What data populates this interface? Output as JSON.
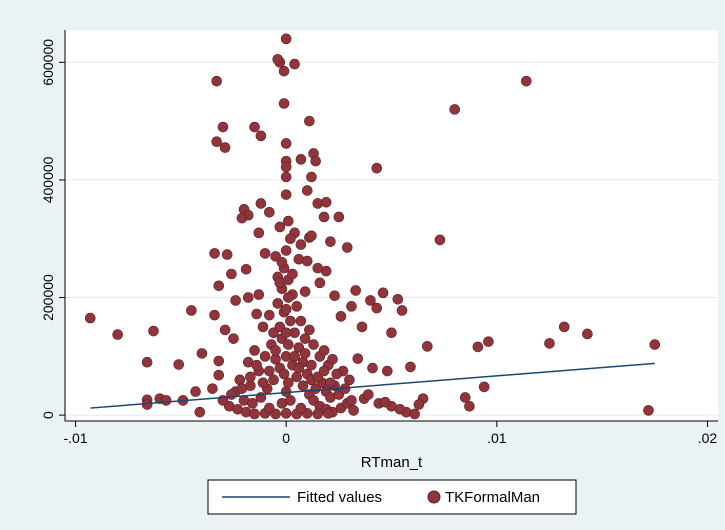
{
  "chart_data": {
    "type": "scatter",
    "title": "",
    "xlabel": "RTman_t",
    "ylabel": "",
    "xlim": [
      -0.0105,
      0.0205
    ],
    "ylim": [
      -10000,
      655000
    ],
    "x_ticks": [
      {
        "value": -0.01,
        "label": "-.01"
      },
      {
        "value": 0,
        "label": "0"
      },
      {
        "value": 0.01,
        "label": ".01"
      },
      {
        "value": 0.02,
        "label": ".02"
      }
    ],
    "y_ticks": [
      {
        "value": 0,
        "label": "0"
      },
      {
        "value": 200000,
        "label": "200000"
      },
      {
        "value": 400000,
        "label": "400000"
      },
      {
        "value": 600000,
        "label": "600000"
      }
    ],
    "grid": {
      "horizontal": true,
      "vertical": false
    },
    "legend": {
      "position": "bottom",
      "entries": [
        "Fitted values",
        "TKFormalMan"
      ]
    },
    "colors": {
      "background": "#eaf2f3",
      "plot_background": "#ffffff",
      "grid": "#e5ecee",
      "fit_line": "#1a476f",
      "points": "#90353b",
      "point_edge": "#5e1f24"
    },
    "series": [
      {
        "name": "Fitted values",
        "type": "line",
        "points": [
          [
            -0.0093,
            12000
          ],
          [
            0.0175,
            88000
          ]
        ]
      },
      {
        "name": "TKFormalMan",
        "type": "scatter",
        "points": [
          [
            0.0,
            640000
          ],
          [
            -0.0003,
            600000
          ],
          [
            -0.0004,
            605000
          ],
          [
            0.0004,
            597000
          ],
          [
            -0.0001,
            585000
          ],
          [
            -0.0033,
            568000
          ],
          [
            0.0114,
            568000
          ],
          [
            0.008,
            520000
          ],
          [
            -0.0001,
            530000
          ],
          [
            0.0011,
            500000
          ],
          [
            -0.003,
            490000
          ],
          [
            -0.0015,
            490000
          ],
          [
            -0.0033,
            465000
          ],
          [
            -0.0029,
            455000
          ],
          [
            -0.0012,
            475000
          ],
          [
            0.0,
            462000
          ],
          [
            0.0007,
            435000
          ],
          [
            0.0013,
            445000
          ],
          [
            0.0014,
            432000
          ],
          [
            0.0,
            432000
          ],
          [
            0.0,
            422000
          ],
          [
            0.0043,
            420000
          ],
          [
            0.0,
            405000
          ],
          [
            0.0012,
            405000
          ],
          [
            0.001,
            382000
          ],
          [
            0.0,
            375000
          ],
          [
            -0.0012,
            360000
          ],
          [
            -0.002,
            350000
          ],
          [
            0.0015,
            360000
          ],
          [
            0.0019,
            362000
          ],
          [
            -0.0018,
            340000
          ],
          [
            -0.0021,
            335000
          ],
          [
            -0.0008,
            345000
          ],
          [
            0.0018,
            337000
          ],
          [
            0.0025,
            337000
          ],
          [
            -0.0013,
            310000
          ],
          [
            -0.0003,
            320000
          ],
          [
            0.0004,
            310000
          ],
          [
            0.0011,
            302000
          ],
          [
            0.0012,
            305000
          ],
          [
            0.0073,
            298000
          ],
          [
            0.0029,
            285000
          ],
          [
            0.0021,
            295000
          ],
          [
            0.0007,
            290000
          ],
          [
            -0.0034,
            275000
          ],
          [
            -0.0028,
            273000
          ],
          [
            -0.001,
            275000
          ],
          [
            -0.0005,
            270000
          ],
          [
            0.0006,
            265000
          ],
          [
            0.001,
            262000
          ],
          [
            -0.0026,
            240000
          ],
          [
            -0.0019,
            248000
          ],
          [
            0.0019,
            245000
          ],
          [
            0.0015,
            250000
          ],
          [
            -0.0004,
            235000
          ],
          [
            -0.0032,
            220000
          ],
          [
            0.0016,
            225000
          ],
          [
            0.0033,
            212000
          ],
          [
            0.0046,
            208000
          ],
          [
            0.0053,
            197000
          ],
          [
            0.004,
            195000
          ],
          [
            -0.0018,
            200000
          ],
          [
            -0.0013,
            205000
          ],
          [
            0.0009,
            210000
          ],
          [
            0.0023,
            203000
          ],
          [
            0.0031,
            185000
          ],
          [
            -0.0045,
            178000
          ],
          [
            0.0043,
            182000
          ],
          [
            0.0055,
            178000
          ],
          [
            -0.0024,
            195000
          ],
          [
            -0.0093,
            165000
          ],
          [
            -0.0034,
            170000
          ],
          [
            -0.0014,
            172000
          ],
          [
            0.0026,
            168000
          ],
          [
            -0.008,
            137000
          ],
          [
            -0.0063,
            143000
          ],
          [
            0.0132,
            150000
          ],
          [
            0.0143,
            138000
          ],
          [
            0.0125,
            122000
          ],
          [
            0.0175,
            120000
          ],
          [
            0.0096,
            125000
          ],
          [
            0.0091,
            116000
          ],
          [
            0.0067,
            117000
          ],
          [
            0.005,
            140000
          ],
          [
            0.0036,
            150000
          ],
          [
            -0.0029,
            145000
          ],
          [
            -0.0025,
            130000
          ],
          [
            -0.004,
            105000
          ],
          [
            -0.0066,
            90000
          ],
          [
            -0.0051,
            86000
          ],
          [
            -0.0032,
            92000
          ],
          [
            0.0059,
            82000
          ],
          [
            0.0034,
            96000
          ],
          [
            0.0041,
            80000
          ],
          [
            0.0048,
            75000
          ],
          [
            0.0094,
            48000
          ],
          [
            -0.0049,
            25000
          ],
          [
            -0.0066,
            26000
          ],
          [
            -0.0066,
            18000
          ],
          [
            -0.006,
            28000
          ],
          [
            -0.0057,
            25000
          ],
          [
            -0.0043,
            40000
          ],
          [
            -0.0035,
            45000
          ],
          [
            -0.0032,
            68000
          ],
          [
            0.0085,
            30000
          ],
          [
            0.0087,
            15000
          ],
          [
            0.0065,
            28000
          ],
          [
            0.0063,
            18000
          ],
          [
            0.0057,
            5000
          ],
          [
            0.005,
            15000
          ],
          [
            0.0044,
            20000
          ],
          [
            0.0037,
            28000
          ],
          [
            0.003,
            60000
          ],
          [
            0.0027,
            75000
          ],
          [
            -0.0041,
            5000
          ],
          [
            0.0172,
            8000
          ],
          [
            0.0061,
            2000
          ],
          [
            0.0054,
            10000
          ],
          [
            0.0047,
            22000
          ],
          [
            0.0039,
            35000
          ],
          [
            -0.0022,
            60000
          ],
          [
            -0.0018,
            90000
          ],
          [
            -0.0015,
            110000
          ],
          [
            -0.0011,
            150000
          ],
          [
            -0.0008,
            170000
          ],
          [
            -0.0006,
            140000
          ],
          [
            -0.0004,
            190000
          ],
          [
            -0.0002,
            215000
          ],
          [
            0.0001,
            230000
          ],
          [
            0.0003,
            205000
          ],
          [
            0.0005,
            185000
          ],
          [
            0.0007,
            160000
          ],
          [
            0.0009,
            130000
          ],
          [
            0.0011,
            145000
          ],
          [
            0.0013,
            120000
          ],
          [
            0.0016,
            100000
          ],
          [
            0.0018,
            110000
          ],
          [
            0.002,
            85000
          ],
          [
            0.0022,
            95000
          ],
          [
            0.0024,
            70000
          ],
          [
            -0.0024,
            40000
          ],
          [
            -0.002,
            25000
          ],
          [
            -0.0017,
            50000
          ],
          [
            -0.0013,
            75000
          ],
          [
            -0.001,
            100000
          ],
          [
            -0.0007,
            120000
          ],
          [
            -0.0005,
            95000
          ],
          [
            -0.0003,
            150000
          ],
          [
            -0.0001,
            175000
          ],
          [
            0.0002,
            160000
          ],
          [
            0.0004,
            140000
          ],
          [
            0.0006,
            115000
          ],
          [
            0.0008,
            90000
          ],
          [
            0.001,
            70000
          ],
          [
            0.0012,
            60000
          ],
          [
            0.0014,
            45000
          ],
          [
            0.0017,
            55000
          ],
          [
            0.0019,
            40000
          ],
          [
            0.0021,
            30000
          ],
          [
            0.0023,
            50000
          ],
          [
            -0.0027,
            15000
          ],
          [
            -0.0023,
            10000
          ],
          [
            -0.0019,
            5000
          ],
          [
            -0.0016,
            20000
          ],
          [
            -0.0012,
            30000
          ],
          [
            -0.0009,
            45000
          ],
          [
            -0.0006,
            60000
          ],
          [
            -0.0003,
            80000
          ],
          [
            0.0,
            100000
          ],
          [
            0.0003,
            85000
          ],
          [
            0.0005,
            65000
          ],
          [
            0.0008,
            50000
          ],
          [
            0.0011,
            35000
          ],
          [
            0.0013,
            25000
          ],
          [
            0.0016,
            15000
          ],
          [
            0.0019,
            10000
          ],
          [
            0.0022,
            5000
          ],
          [
            0.0026,
            12000
          ],
          [
            0.0029,
            20000
          ],
          [
            0.0032,
            8000
          ],
          [
            -0.003,
            25000
          ],
          [
            -0.0026,
            35000
          ],
          [
            -0.0021,
            45000
          ],
          [
            -0.0017,
            65000
          ],
          [
            -0.0014,
            85000
          ],
          [
            -0.0011,
            55000
          ],
          [
            -0.0008,
            75000
          ],
          [
            -0.0005,
            110000
          ],
          [
            -0.0002,
            130000
          ],
          [
            0.0001,
            120000
          ],
          [
            0.0004,
            100000
          ],
          [
            0.0006,
            80000
          ],
          [
            0.0009,
            105000
          ],
          [
            0.0012,
            85000
          ],
          [
            0.0015,
            65000
          ],
          [
            0.0018,
            75000
          ],
          [
            0.0021,
            55000
          ],
          [
            0.0025,
            35000
          ],
          [
            0.0028,
            45000
          ],
          [
            0.0031,
            25000
          ],
          [
            -0.0015,
            2000
          ],
          [
            -0.001,
            3000
          ],
          [
            -0.0005,
            2000
          ],
          [
            0.0,
            3000
          ],
          [
            0.0005,
            2000
          ],
          [
            0.001,
            3000
          ],
          [
            0.0015,
            2000
          ],
          [
            0.002,
            3000
          ],
          [
            -0.0008,
            12000
          ],
          [
            0.0007,
            12000
          ],
          [
            -0.0002,
            20000
          ],
          [
            0.0002,
            25000
          ],
          [
            0.0,
            40000
          ],
          [
            0.0001,
            55000
          ],
          [
            -0.0001,
            70000
          ],
          [
            0.0,
            140000
          ],
          [
            0.0,
            180000
          ],
          [
            0.0001,
            200000
          ],
          [
            -0.0001,
            250000
          ],
          [
            0.0,
            280000
          ],
          [
            0.0002,
            300000
          ],
          [
            -0.0002,
            260000
          ],
          [
            0.0003,
            240000
          ],
          [
            -0.0003,
            225000
          ],
          [
            0.0001,
            330000
          ]
        ]
      }
    ]
  }
}
